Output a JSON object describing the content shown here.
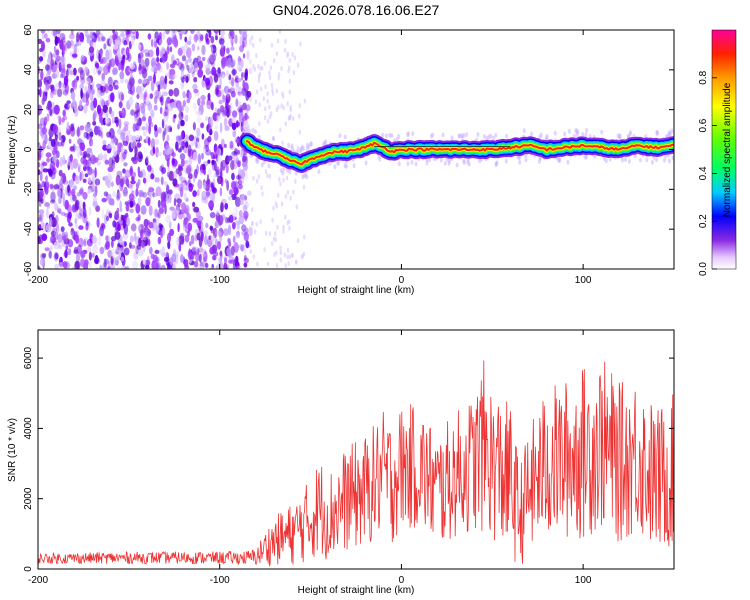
{
  "title": "GN04.2026.078.16.06.E27",
  "chart_data": [
    {
      "type": "heatmap",
      "name": "spectrogram",
      "xlabel": "Height of straight line (km)",
      "ylabel": "Frequency (Hz)",
      "xlim": [
        -200,
        150
      ],
      "ylim": [
        -60,
        60
      ],
      "xticks": [
        -200,
        -100,
        0,
        100
      ],
      "yticks": [
        60,
        40,
        20,
        0,
        -20,
        -40,
        -60
      ],
      "noise_region_km": [
        -200,
        -83
      ],
      "signal_track": {
        "x": [
          -85,
          -80,
          -75,
          -70,
          -65,
          -60,
          -55,
          -50,
          -45,
          -40,
          -35,
          -30,
          -25,
          -20,
          -15,
          -10,
          -5,
          0,
          10,
          20,
          30,
          40,
          50,
          60,
          70,
          80,
          90,
          100,
          110,
          120,
          130,
          140,
          150
        ],
        "y": [
          4,
          1,
          -1,
          -2,
          -4,
          -6,
          -7,
          -5,
          -3,
          -2,
          -1,
          -1,
          0,
          1,
          3,
          1,
          -1,
          0,
          0,
          0,
          0,
          0,
          0,
          1,
          2,
          0,
          1,
          2,
          1,
          0,
          2,
          1,
          2
        ]
      },
      "colorbar": {
        "label": "Normalized spectral amplitude",
        "range": [
          0,
          1
        ],
        "ticks": [
          "0.0",
          "0.2",
          "0.4",
          "0.6",
          "0.8"
        ]
      }
    },
    {
      "type": "line",
      "name": "snr",
      "xlabel": "Height of straight line (km)",
      "ylabel": "SNR (10 * v/v)",
      "xlim": [
        -200,
        150
      ],
      "ylim": [
        0,
        6800
      ],
      "xticks": [
        -200,
        -100,
        0,
        100
      ],
      "yticks": [
        0,
        2000,
        4000,
        6000
      ],
      "color": "#ee3333",
      "envelope": {
        "x": [
          -200,
          -150,
          -100,
          -85,
          -80,
          -75,
          -70,
          -60,
          -50,
          -45,
          -40,
          -30,
          -20,
          -10,
          -5,
          0,
          10,
          20,
          30,
          40,
          45,
          50,
          60,
          65,
          70,
          80,
          90,
          100,
          110,
          120,
          130,
          140,
          150
        ],
        "mean": [
          300,
          320,
          320,
          320,
          350,
          600,
          800,
          1000,
          1400,
          1800,
          1500,
          2000,
          2200,
          2700,
          2500,
          2900,
          2900,
          2200,
          2700,
          3000,
          3500,
          3000,
          2500,
          1500,
          2200,
          3000,
          3100,
          3300,
          3600,
          3000,
          3300,
          2500,
          2800
        ],
        "amp": [
          150,
          170,
          180,
          200,
          250,
          500,
          700,
          900,
          1200,
          1400,
          1300,
          1500,
          1600,
          1800,
          1800,
          1800,
          1800,
          1700,
          1800,
          2000,
          2500,
          2200,
          2200,
          1500,
          1800,
          2200,
          2300,
          2500,
          2500,
          2300,
          2300,
          2100,
          2200
        ]
      }
    }
  ]
}
